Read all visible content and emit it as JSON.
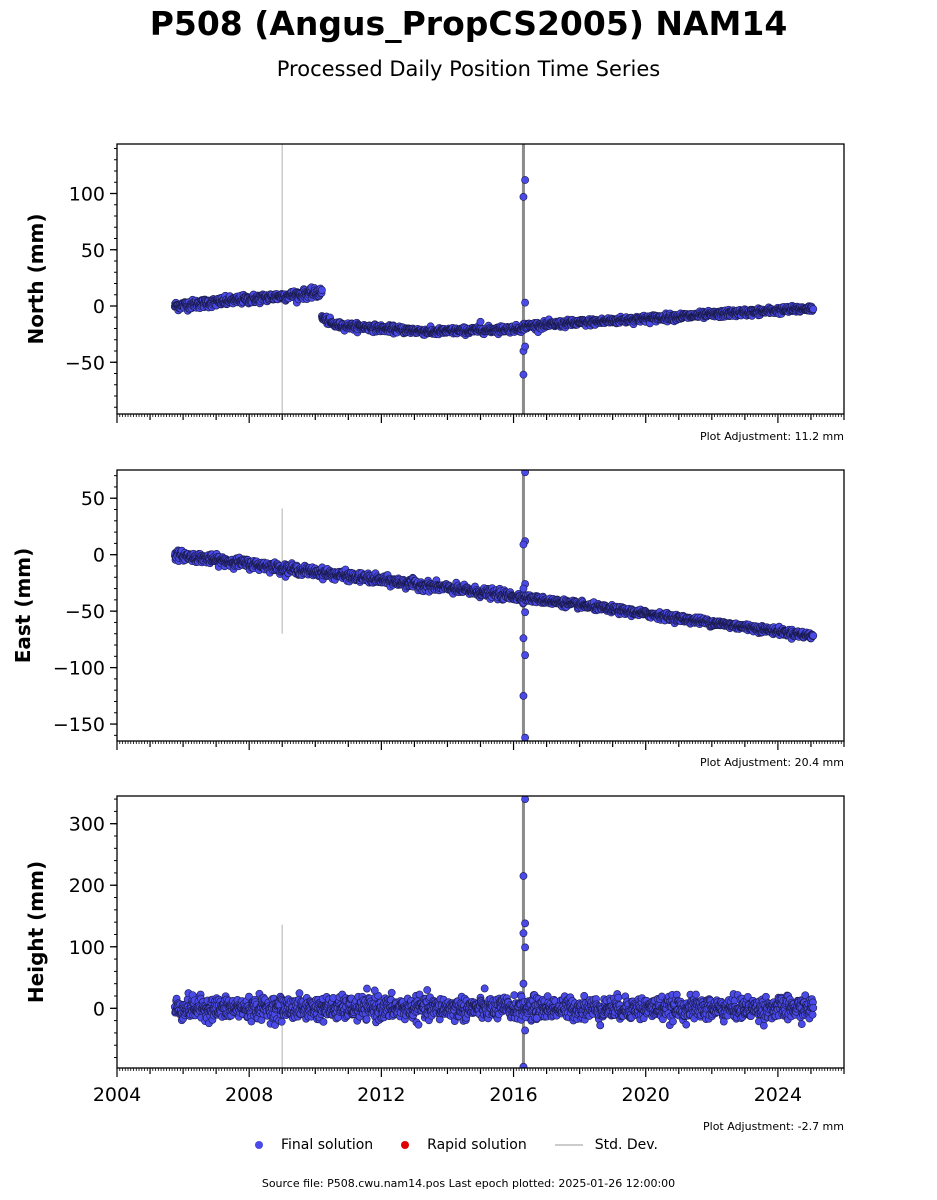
{
  "title": "P508 (Angus_PropCS2005) NAM14",
  "subtitle": "Processed Daily Position Time Series",
  "colors": {
    "final": "#4a4ae8",
    "final_edge": "#1a1a4a",
    "rapid": "#e00000",
    "stddev": "#cccccc",
    "stddev_dark": "#777777"
  },
  "legend": {
    "final": "Final solution",
    "rapid": "Rapid solution",
    "stddev": "Std. Dev."
  },
  "footer": {
    "text": "Source file: P508.cwu.nam14.pos  Last epoch plotted: 2025-01-26 12:00:00"
  },
  "chart_data": [
    {
      "type": "scatter",
      "ylabel": "North (mm)",
      "adjustment": "Plot Adjustment: 11.2 mm",
      "xlim": [
        2004,
        2026
      ],
      "ylim": [
        -96,
        144
      ],
      "yticks": [
        -50,
        0,
        50,
        100
      ],
      "ytick_labels": [
        "−50",
        "0",
        "50",
        "100"
      ],
      "xticks": [],
      "stddev_markers": [
        {
          "x": 2009.0,
          "y0": -96,
          "y1": 144,
          "light": true
        },
        {
          "x": 2016.3,
          "y0": -96,
          "y1": 144,
          "light": false
        }
      ],
      "segments": [
        {
          "x": [
            2005.75,
            2010.2
          ],
          "y": [
            0,
            12
          ],
          "noise": 2
        },
        {
          "x": [
            2010.2,
            2010.6
          ],
          "y": [
            -10,
            -17
          ],
          "noise": 1.5
        },
        {
          "x": [
            2010.6,
            2013.5
          ],
          "y": [
            -17,
            -23
          ],
          "noise": 1.5
        },
        {
          "x": [
            2013.5,
            2016.3
          ],
          "y": [
            -23,
            -20
          ],
          "noise": 1.5
        },
        {
          "x": [
            2016.3,
            2025.07
          ],
          "y": [
            -18,
            -2
          ],
          "noise": 1.5
        }
      ],
      "outliers": [
        {
          "x": 2016.35,
          "y": 112
        },
        {
          "x": 2016.3,
          "y": 97
        },
        {
          "x": 2016.35,
          "y": 3
        },
        {
          "x": 2016.3,
          "y": -40
        },
        {
          "x": 2016.35,
          "y": -36
        },
        {
          "x": 2016.3,
          "y": -61
        },
        {
          "x": 2015.0,
          "y": -14
        }
      ]
    },
    {
      "type": "scatter",
      "ylabel": "East (mm)",
      "adjustment": "Plot Adjustment: 20.4 mm",
      "xlim": [
        2004,
        2026
      ],
      "ylim": [
        -165,
        75
      ],
      "yticks": [
        -150,
        -100,
        -50,
        0,
        50
      ],
      "ytick_labels": [
        "−150",
        "−100",
        "−50",
        "0",
        "50"
      ],
      "xticks": [],
      "stddev_markers": [
        {
          "x": 2009.0,
          "y0": -70,
          "y1": 41,
          "light": true
        },
        {
          "x": 2016.3,
          "y0": -165,
          "y1": 75,
          "light": false
        }
      ],
      "segments": [
        {
          "x": [
            2005.75,
            2016.3
          ],
          "y": [
            0,
            -38
          ],
          "noise": 2
        },
        {
          "x": [
            2016.3,
            2025.07
          ],
          "y": [
            -38,
            -72
          ],
          "noise": 1.5
        }
      ],
      "outliers": [
        {
          "x": 2016.35,
          "y": 73
        },
        {
          "x": 2016.35,
          "y": 12
        },
        {
          "x": 2016.3,
          "y": 9
        },
        {
          "x": 2016.35,
          "y": -26
        },
        {
          "x": 2016.3,
          "y": -30
        },
        {
          "x": 2016.35,
          "y": -51
        },
        {
          "x": 2016.3,
          "y": -74
        },
        {
          "x": 2016.35,
          "y": -89
        },
        {
          "x": 2016.3,
          "y": -125
        },
        {
          "x": 2016.35,
          "y": -162
        }
      ]
    },
    {
      "type": "scatter",
      "ylabel": "Height (mm)",
      "adjustment": "Plot Adjustment: -2.7 mm",
      "xlim": [
        2004,
        2026
      ],
      "ylim": [
        -97,
        345
      ],
      "yticks": [
        0,
        100,
        200,
        300
      ],
      "ytick_labels": [
        "0",
        "100",
        "200",
        "300"
      ],
      "xticks": [
        2004,
        2008,
        2012,
        2016,
        2020,
        2024
      ],
      "stddev_markers": [
        {
          "x": 2009.0,
          "y0": -97,
          "y1": 136,
          "light": true
        },
        {
          "x": 2016.3,
          "y0": -97,
          "y1": 345,
          "light": false
        }
      ],
      "segments": [
        {
          "x": [
            2005.75,
            2025.07
          ],
          "y": [
            0,
            0
          ],
          "noise": 9
        }
      ],
      "outliers": [
        {
          "x": 2016.35,
          "y": 340
        },
        {
          "x": 2016.3,
          "y": 215
        },
        {
          "x": 2016.35,
          "y": 138
        },
        {
          "x": 2016.3,
          "y": 122
        },
        {
          "x": 2016.35,
          "y": 99
        },
        {
          "x": 2016.3,
          "y": 40
        },
        {
          "x": 2016.35,
          "y": -36
        },
        {
          "x": 2016.3,
          "y": -95
        },
        {
          "x": 2016.7,
          "y": -16
        },
        {
          "x": 2011.8,
          "y": 29
        }
      ]
    }
  ]
}
